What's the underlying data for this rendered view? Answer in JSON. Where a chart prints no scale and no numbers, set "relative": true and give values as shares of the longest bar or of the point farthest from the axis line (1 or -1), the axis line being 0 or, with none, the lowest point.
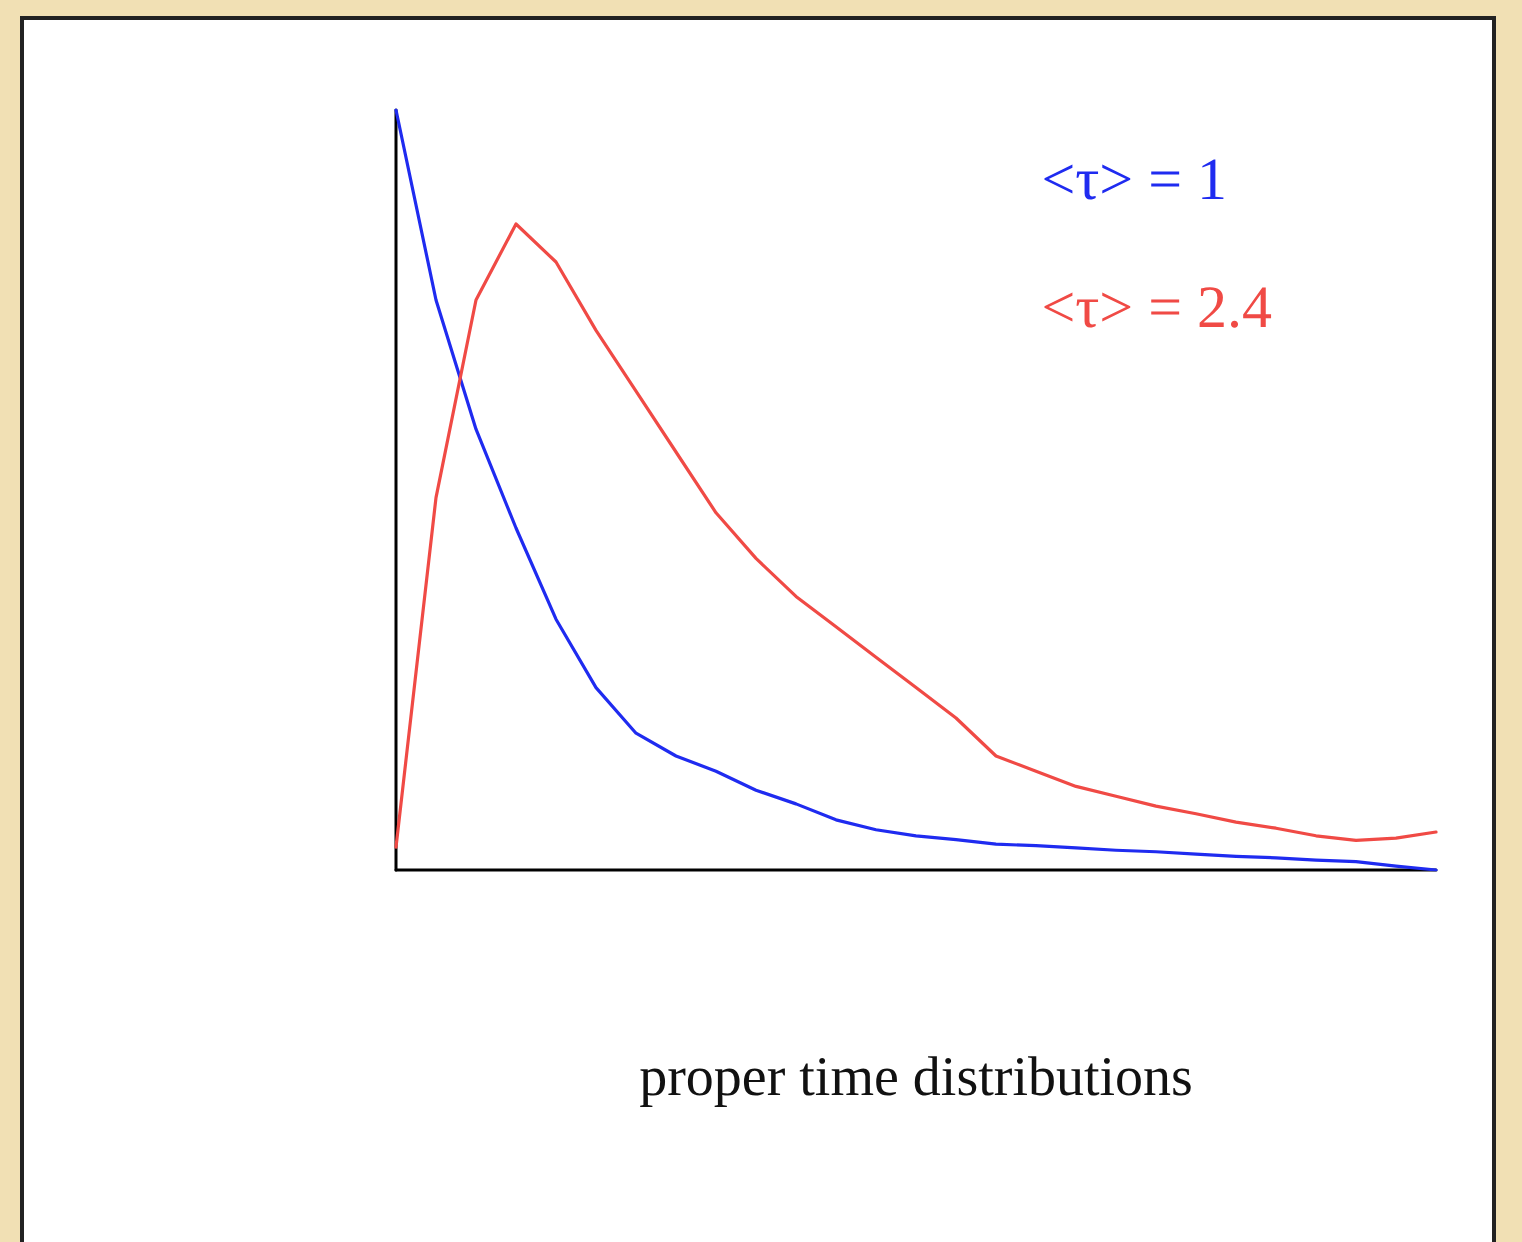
{
  "chart_data": {
    "type": "line",
    "relative": true,
    "xlabel": "proper time distributions",
    "legend": "top right",
    "marker": "none",
    "grid": false,
    "categories": [
      null,
      null,
      null,
      null,
      null,
      null,
      null,
      null,
      null,
      null,
      null,
      null,
      null,
      null,
      null,
      null,
      null,
      null,
      null,
      null,
      null,
      null,
      null,
      null,
      null,
      null,
      null
    ],
    "series": [
      {
        "name": "<τ> = 1",
        "color": "#1f2bf0",
        "values": [
          1.0,
          0.75,
          0.58,
          0.45,
          0.33,
          0.24,
          0.18,
          0.15,
          0.13,
          0.105,
          0.087,
          0.066,
          0.053,
          0.045,
          0.04,
          0.034,
          0.032,
          0.029,
          0.026,
          0.024,
          0.021,
          0.018,
          0.016,
          0.013,
          0.011,
          0.005,
          0
        ]
      },
      {
        "name": "<τ> = 2.4",
        "color": "#f04a45",
        "values": [
          0.03,
          0.49,
          0.75,
          0.85,
          0.8,
          0.71,
          0.63,
          0.55,
          0.47,
          0.41,
          0.36,
          0.32,
          0.28,
          0.24,
          0.2,
          0.15,
          0.13,
          0.11,
          0.097,
          0.084,
          0.074,
          0.063,
          0.055,
          0.045,
          0.039,
          0.042,
          0.05
        ]
      }
    ]
  }
}
